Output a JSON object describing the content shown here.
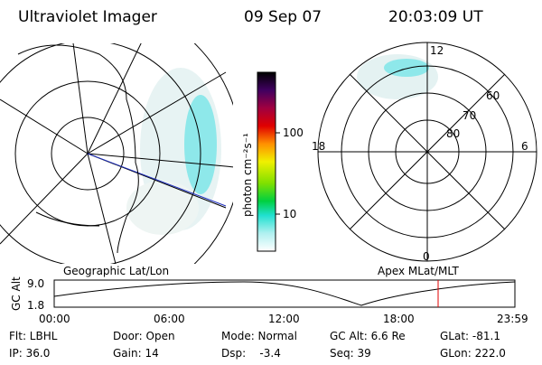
{
  "header": {
    "instrument": "Ultraviolet Imager",
    "date": "09 Sep 07",
    "time": "20:03:09 UT"
  },
  "colorbar": {
    "label": "photon cm⁻²s⁻¹",
    "ticks": [
      "100",
      "10"
    ]
  },
  "polar": {
    "mlt_labels": [
      "12",
      "18",
      "6",
      "0"
    ],
    "mlat_labels": [
      "60",
      "70",
      "80"
    ]
  },
  "panel_labels": [
    "Geographic Lat/Lon",
    "Apex MLat/MLT"
  ],
  "altitude_plot": {
    "ylabel": "GC Alt",
    "yticks": [
      "9.0",
      "1.8"
    ],
    "xticks": [
      "00:00",
      "06:00",
      "12:00",
      "18:00",
      "23:59"
    ]
  },
  "info": [
    [
      "Flt: LBHL",
      "Door: Open",
      "Mode: Normal",
      "GC Alt: 6.6 Re",
      "GLat: -81.1"
    ],
    [
      "IP: 36.0",
      "Gain: 14",
      "Dsp:    -3.4",
      "Seq: 39",
      "GLon: 222.0"
    ]
  ]
}
